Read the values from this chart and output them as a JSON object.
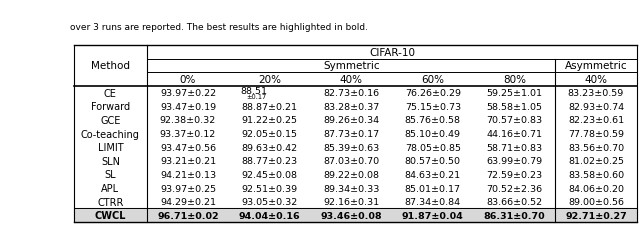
{
  "caption": "over 3 runs are reported. The best results are highlighted in bold.",
  "cifar_header": "CIFAR-10",
  "methods": [
    "CE",
    "Forward",
    "GCE",
    "Co-teaching",
    "LIMIT",
    "SLN",
    "SL",
    "APL",
    "CTRR",
    "CWCL"
  ],
  "data": {
    "CE": [
      "93.97±0.22",
      "88.51±0.17*",
      "82.73±0.16",
      "76.26±0.29",
      "59.25±1.01",
      "83.23±0.59"
    ],
    "Forward": [
      "93.47±0.19",
      "88.87±0.21",
      "83.28±0.37",
      "75.15±0.73",
      "58.58±1.05",
      "82.93±0.74"
    ],
    "GCE": [
      "92.38±0.32",
      "91.22±0.25",
      "89.26±0.34",
      "85.76±0.58",
      "70.57±0.83",
      "82.23±0.61"
    ],
    "Co-teaching": [
      "93.37±0.12",
      "92.05±0.15",
      "87.73±0.17",
      "85.10±0.49",
      "44.16±0.71",
      "77.78±0.59"
    ],
    "LIMIT": [
      "93.47±0.56",
      "89.63±0.42",
      "85.39±0.63",
      "78.05±0.85",
      "58.71±0.83",
      "83.56±0.70"
    ],
    "SLN": [
      "93.21±0.21",
      "88.77±0.23",
      "87.03±0.70",
      "80.57±0.50",
      "63.99±0.79",
      "81.02±0.25"
    ],
    "SL": [
      "94.21±0.13",
      "92.45±0.08",
      "89.22±0.08",
      "84.63±0.21",
      "72.59±0.23",
      "83.58±0.60"
    ],
    "APL": [
      "93.97±0.25",
      "92.51±0.39",
      "89.34±0.33",
      "85.01±0.17",
      "70.52±2.36",
      "84.06±0.20"
    ],
    "CTRR": [
      "94.29±0.21",
      "93.05±0.32",
      "92.16±0.31",
      "87.34±0.84",
      "83.66±0.52",
      "89.00±0.56"
    ],
    "CWCL": [
      "96.71±0.02",
      "94.04±0.16",
      "93.46±0.08",
      "91.87±0.04",
      "86.31±0.70",
      "92.71±0.27"
    ]
  },
  "bold_row": "CWCL",
  "subscript_cell_row": "CE",
  "subscript_cell_col": 1,
  "pct_headers": [
    "0%",
    "20%",
    "40%",
    "60%",
    "80%",
    "40%"
  ],
  "sym_ncols": 5,
  "asym_ncols": 1
}
